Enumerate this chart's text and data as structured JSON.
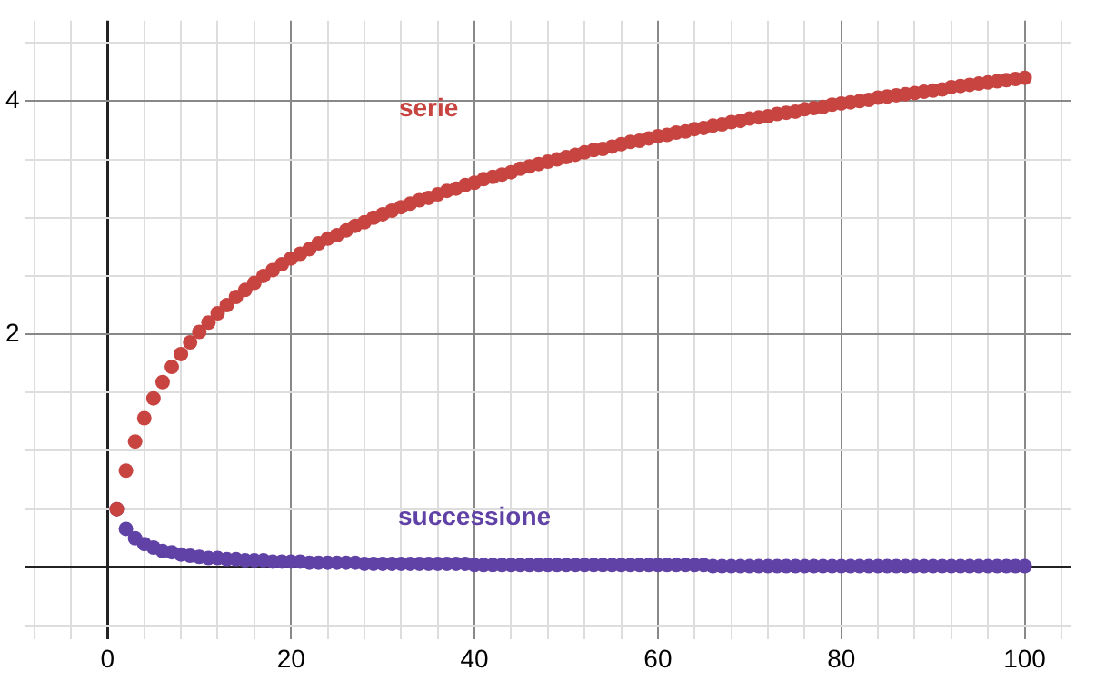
{
  "chart_data": {
    "type": "scatter",
    "marker": "circle",
    "grid": true,
    "legend": false,
    "xlim": [
      -9,
      105
    ],
    "ylim": [
      -0.62,
      4.69
    ],
    "xticks": [
      {
        "value": -8,
        "label": null
      },
      {
        "value": -4,
        "label": null
      },
      0,
      {
        "value": 4,
        "label": null
      },
      {
        "value": 8,
        "label": null
      },
      {
        "value": 12,
        "label": null
      },
      {
        "value": 16,
        "label": null
      },
      20,
      {
        "value": 24,
        "label": null
      },
      {
        "value": 28,
        "label": null
      },
      {
        "value": 32,
        "label": null
      },
      {
        "value": 36,
        "label": null
      },
      40,
      {
        "value": 44,
        "label": null
      },
      {
        "value": 48,
        "label": null
      },
      {
        "value": 52,
        "label": null
      },
      {
        "value": 56,
        "label": null
      },
      60,
      {
        "value": 64,
        "label": null
      },
      {
        "value": 68,
        "label": null
      },
      {
        "value": 72,
        "label": null
      },
      {
        "value": 76,
        "label": null
      },
      80,
      {
        "value": 84,
        "label": null
      },
      {
        "value": 88,
        "label": null
      },
      {
        "value": 92,
        "label": null
      },
      {
        "value": 96,
        "label": null
      },
      100,
      {
        "value": 104,
        "label": null
      }
    ],
    "yticks": [
      {
        "value": -0.5,
        "label": null
      },
      {
        "value": 0,
        "label": null
      },
      {
        "value": 0.5,
        "label": null
      },
      {
        "value": 1,
        "label": null
      },
      {
        "value": 1.5,
        "label": null
      },
      2,
      {
        "value": 2.5,
        "label": null
      },
      {
        "value": 3,
        "label": null
      },
      {
        "value": 3.5,
        "label": null
      },
      4,
      {
        "value": 4.5,
        "label": null
      }
    ],
    "x": [
      1,
      2,
      3,
      4,
      5,
      6,
      7,
      8,
      9,
      10,
      11,
      12,
      13,
      14,
      15,
      16,
      17,
      18,
      19,
      20,
      21,
      22,
      23,
      24,
      25,
      26,
      27,
      28,
      29,
      30,
      31,
      32,
      33,
      34,
      35,
      36,
      37,
      38,
      39,
      40,
      41,
      42,
      43,
      44,
      45,
      46,
      47,
      48,
      49,
      50,
      51,
      52,
      53,
      54,
      55,
      56,
      57,
      58,
      59,
      60,
      61,
      62,
      63,
      64,
      65,
      66,
      67,
      68,
      69,
      70,
      71,
      72,
      73,
      74,
      75,
      76,
      77,
      78,
      79,
      80,
      81,
      82,
      83,
      84,
      85,
      86,
      87,
      88,
      89,
      90,
      91,
      92,
      93,
      94,
      95,
      96,
      97,
      98,
      99,
      100
    ],
    "series": [
      {
        "name": "serie",
        "color": "#c74440",
        "values": [
          0.5,
          0.83,
          1.08,
          1.28,
          1.45,
          1.59,
          1.72,
          1.83,
          1.93,
          2.02,
          2.1,
          2.18,
          2.25,
          2.32,
          2.38,
          2.44,
          2.5,
          2.55,
          2.6,
          2.65,
          2.69,
          2.73,
          2.78,
          2.82,
          2.85,
          2.89,
          2.93,
          2.96,
          3.0,
          3.03,
          3.06,
          3.09,
          3.12,
          3.15,
          3.17,
          3.2,
          3.23,
          3.25,
          3.28,
          3.3,
          3.33,
          3.35,
          3.37,
          3.39,
          3.42,
          3.44,
          3.46,
          3.48,
          3.5,
          3.52,
          3.54,
          3.56,
          3.58,
          3.59,
          3.61,
          3.63,
          3.65,
          3.66,
          3.68,
          3.7,
          3.71,
          3.73,
          3.74,
          3.76,
          3.77,
          3.79,
          3.8,
          3.82,
          3.83,
          3.85,
          3.86,
          3.87,
          3.89,
          3.9,
          3.91,
          3.93,
          3.94,
          3.95,
          3.97,
          3.98,
          3.99,
          4.0,
          4.01,
          4.03,
          4.04,
          4.05,
          4.06,
          4.07,
          4.08,
          4.09,
          4.1,
          4.12,
          4.13,
          4.14,
          4.15,
          4.16,
          4.17,
          4.18,
          4.19,
          4.2
        ]
      },
      {
        "name": "successione",
        "color": "#6042a6",
        "values": [
          0.5,
          0.33,
          0.25,
          0.2,
          0.17,
          0.14,
          0.13,
          0.11,
          0.1,
          0.09,
          0.08,
          0.08,
          0.07,
          0.07,
          0.06,
          0.06,
          0.06,
          0.05,
          0.05,
          0.05,
          0.05,
          0.04,
          0.04,
          0.04,
          0.04,
          0.04,
          0.04,
          0.03,
          0.03,
          0.03,
          0.03,
          0.03,
          0.03,
          0.03,
          0.03,
          0.03,
          0.03,
          0.03,
          0.03,
          0.02,
          0.02,
          0.02,
          0.02,
          0.02,
          0.02,
          0.02,
          0.02,
          0.02,
          0.02,
          0.02,
          0.02,
          0.02,
          0.02,
          0.02,
          0.02,
          0.02,
          0.02,
          0.02,
          0.02,
          0.02,
          0.02,
          0.02,
          0.02,
          0.02,
          0.02,
          0.01,
          0.01,
          0.01,
          0.01,
          0.01,
          0.01,
          0.01,
          0.01,
          0.01,
          0.01,
          0.01,
          0.01,
          0.01,
          0.01,
          0.01,
          0.01,
          0.01,
          0.01,
          0.01,
          0.01,
          0.01,
          0.01,
          0.01,
          0.01,
          0.01,
          0.01,
          0.01,
          0.01,
          0.01,
          0.01,
          0.01,
          0.01,
          0.01,
          0.01,
          0.01
        ]
      }
    ]
  }
}
